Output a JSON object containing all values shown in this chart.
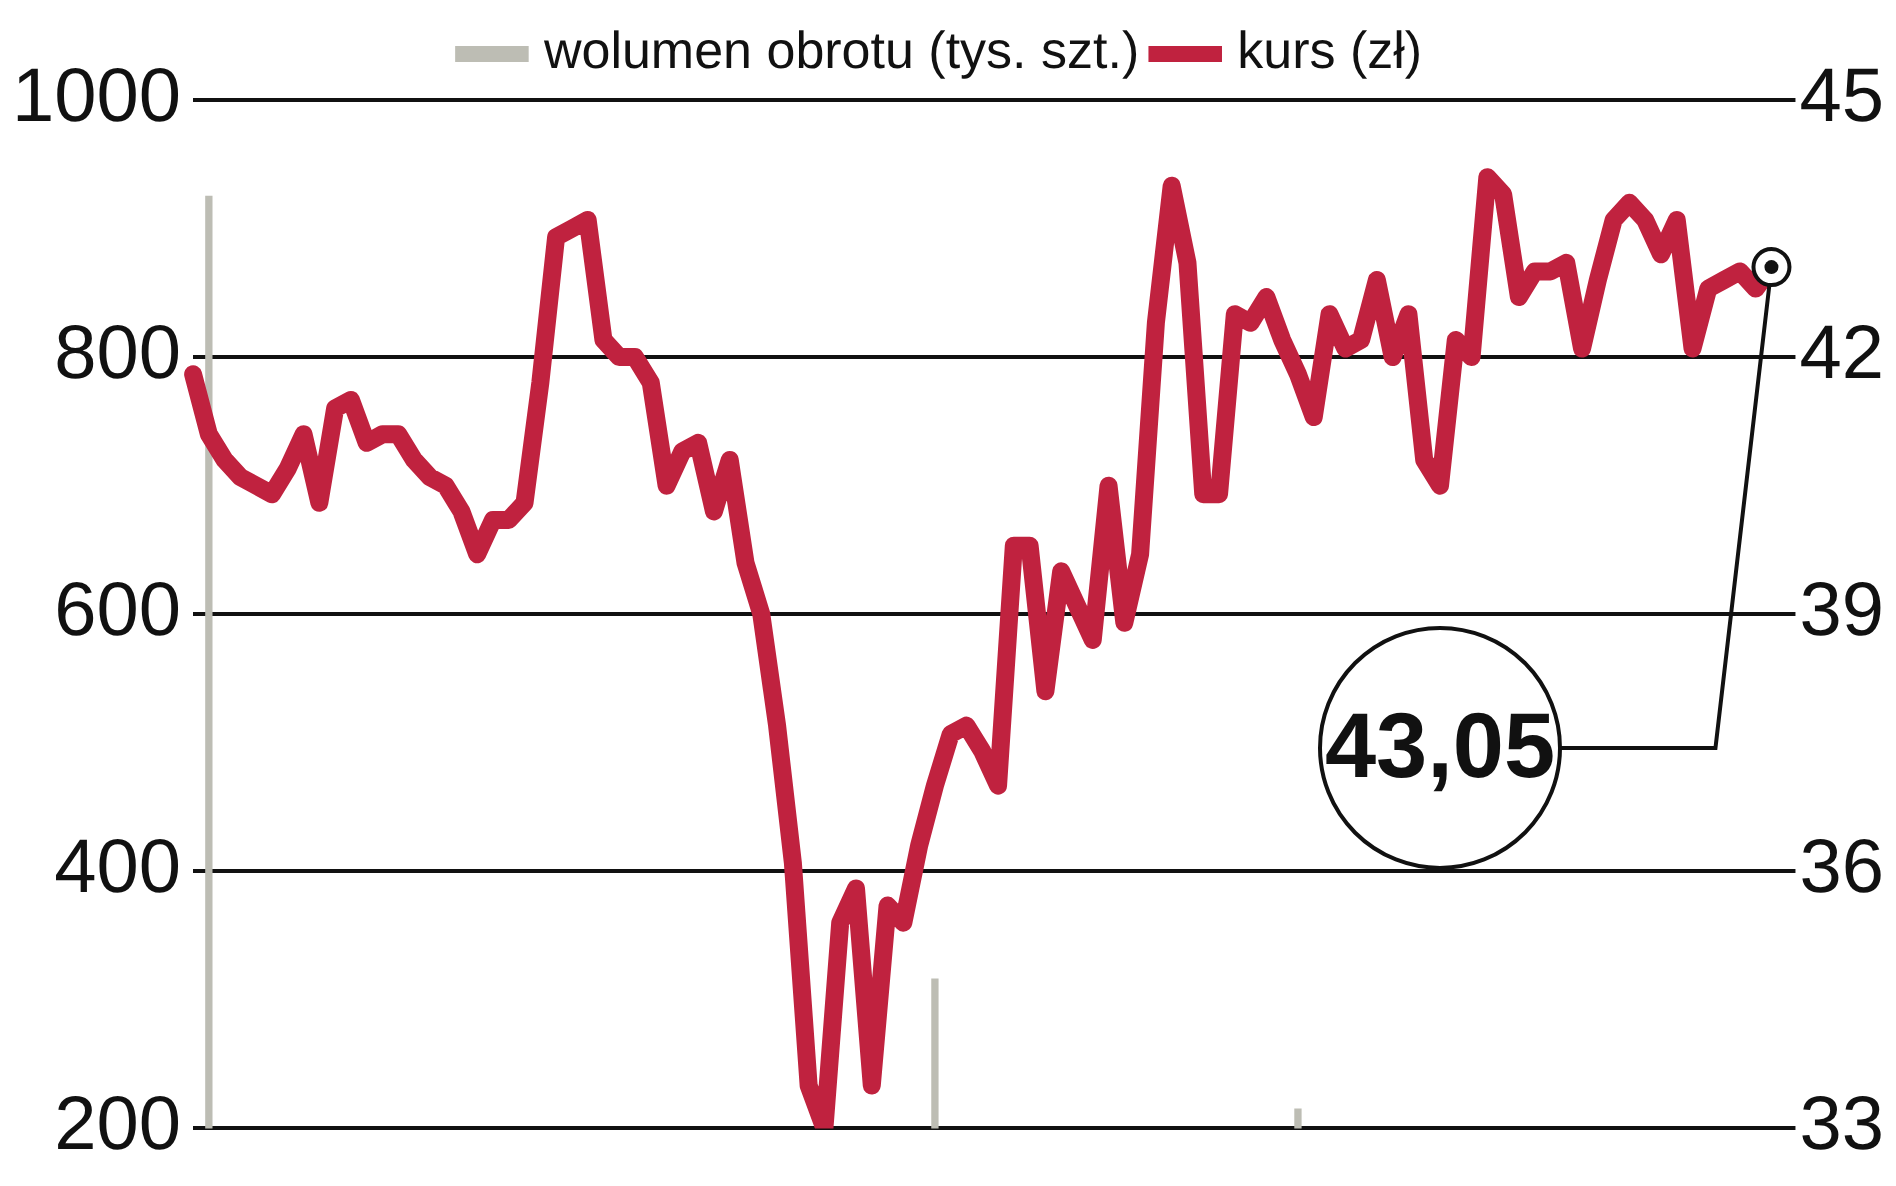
{
  "chart_data": {
    "type": "line",
    "categories": [
      null,
      null,
      null,
      null,
      null,
      null,
      null,
      null,
      null,
      null,
      null,
      null,
      null,
      null,
      null,
      null,
      null,
      null,
      null,
      null,
      null,
      null,
      null,
      null,
      null,
      null,
      null,
      null,
      null,
      null,
      null,
      null,
      null,
      null,
      null,
      null,
      null,
      null,
      null,
      null,
      null,
      null,
      null,
      null,
      null,
      null,
      null,
      null,
      null,
      null,
      null,
      null,
      null,
      null,
      null,
      null,
      null,
      null,
      null,
      null,
      null,
      null,
      null,
      null,
      null,
      null,
      null,
      null,
      null,
      null,
      null,
      null,
      null,
      null,
      null,
      null,
      null,
      null,
      null,
      null,
      null,
      null,
      null,
      null,
      null,
      null,
      null,
      null,
      null,
      null,
      null,
      null,
      null,
      null,
      null,
      null,
      null,
      null,
      null,
      null,
      null
    ],
    "series": [
      {
        "name": "wolumen obrotu (tys. szt.)",
        "type": "bar",
        "color": "#bdbdb4",
        "values": [
          null,
          925,
          null,
          null,
          null,
          null,
          null,
          null,
          null,
          null,
          null,
          null,
          null,
          null,
          null,
          null,
          null,
          null,
          null,
          null,
          null,
          null,
          null,
          null,
          null,
          null,
          null,
          null,
          null,
          null,
          null,
          null,
          null,
          null,
          null,
          null,
          null,
          null,
          null,
          null,
          null,
          null,
          null,
          null,
          null,
          null,
          null,
          316,
          null,
          null,
          null,
          null,
          null,
          null,
          null,
          null,
          null,
          null,
          null,
          null,
          null,
          null,
          null,
          null,
          null,
          null,
          null,
          null,
          null,
          null,
          215,
          null,
          null,
          null,
          null,
          null,
          null,
          null,
          null,
          null,
          null,
          null,
          null,
          null,
          null,
          null,
          null,
          null,
          null,
          null,
          null,
          null,
          null,
          null,
          null,
          null,
          null,
          null,
          null,
          null,
          null
        ]
      },
      {
        "name": "kurs (zł)",
        "axis": "y2",
        "color": "#c0223f",
        "values": [
          41.8,
          41.1,
          40.8,
          40.6,
          40.5,
          40.4,
          40.7,
          41.1,
          40.3,
          41.4,
          41.5,
          41.0,
          41.1,
          41.1,
          40.8,
          40.6,
          40.5,
          40.2,
          39.7,
          40.1,
          40.1,
          40.3,
          41.7,
          43.4,
          43.5,
          43.6,
          42.2,
          42.0,
          42.0,
          41.7,
          40.5,
          40.9,
          41.0,
          40.2,
          40.8,
          39.6,
          39.0,
          37.7,
          36.1,
          33.5,
          33,
          35.4,
          35.8,
          33.5,
          35.6,
          35.4,
          36.3,
          37.0,
          37.6,
          37.7,
          37.4,
          37.0,
          39.8,
          39.8,
          38.1,
          39.5,
          39.1,
          38.7,
          40.5,
          38.9,
          39.7,
          42.4,
          44.0,
          43.1,
          40.4,
          40.4,
          42.5,
          42.4,
          42.7,
          42.2,
          41.8,
          41.3,
          42.5,
          42.1,
          42.2,
          42.9,
          42.0,
          42.5,
          40.8,
          40.5,
          42.2,
          42.0,
          44.1,
          43.9,
          42.7,
          43.0,
          43.0,
          43.1,
          42.1,
          42.9,
          43.6,
          43.8,
          43.6,
          43.2,
          43.6,
          42.1,
          42.8,
          42.9,
          43.0,
          42.8,
          43.05
        ]
      }
    ],
    "ylim": [
      200,
      1000
    ],
    "yticks": [
      200,
      400,
      600,
      800,
      1000
    ],
    "y2lim": [
      33,
      45
    ],
    "y2ticks": [
      33,
      36,
      39,
      42,
      45
    ],
    "grid": "y",
    "legend": "top",
    "marker": "none",
    "line_style": "solid",
    "tick_labels": "y",
    "annotations": [
      "43,05"
    ]
  }
}
